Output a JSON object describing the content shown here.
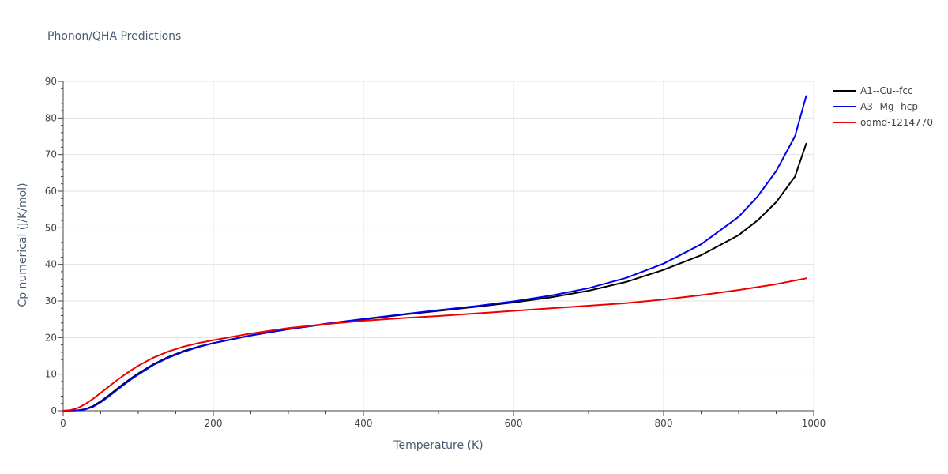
{
  "chart_data": {
    "type": "line",
    "title": "Phonon/QHA Predictions",
    "xlabel": "Temperature (K)",
    "ylabel": "Cp numerical (J/K/mol)",
    "xlim": [
      0,
      1000
    ],
    "ylim": [
      0,
      90
    ],
    "xticks": [
      0,
      200,
      400,
      600,
      800,
      1000
    ],
    "yticks": [
      0,
      10,
      20,
      30,
      40,
      50,
      60,
      70,
      80,
      90
    ],
    "grid": true,
    "legend_position": "top-right",
    "series": [
      {
        "name": "A1--Cu--fcc",
        "color": "#000000",
        "x": [
          0,
          20,
          30,
          40,
          50,
          60,
          70,
          80,
          90,
          100,
          120,
          140,
          160,
          180,
          200,
          250,
          300,
          350,
          400,
          450,
          500,
          550,
          600,
          650,
          700,
          750,
          800,
          850,
          900,
          925,
          950,
          975,
          990
        ],
        "y": [
          0,
          0.1,
          0.5,
          1.3,
          2.6,
          4.1,
          5.7,
          7.3,
          8.8,
          10.2,
          12.7,
          14.7,
          16.3,
          17.5,
          18.5,
          20.6,
          22.3,
          23.7,
          25.0,
          26.2,
          27.3,
          28.4,
          29.6,
          31.0,
          32.8,
          35.2,
          38.5,
          42.5,
          48.0,
          52.0,
          57.0,
          64.0,
          73.0
        ]
      },
      {
        "name": "A3--Mg--hcp",
        "color": "#0000ee",
        "x": [
          0,
          20,
          30,
          40,
          50,
          60,
          70,
          80,
          90,
          100,
          120,
          140,
          160,
          180,
          200,
          250,
          300,
          350,
          400,
          450,
          500,
          550,
          600,
          650,
          700,
          750,
          800,
          850,
          900,
          925,
          950,
          975,
          990
        ],
        "y": [
          0,
          0.1,
          0.4,
          1.1,
          2.3,
          3.8,
          5.4,
          7.0,
          8.5,
          9.9,
          12.5,
          14.5,
          16.1,
          17.4,
          18.5,
          20.6,
          22.3,
          23.8,
          25.1,
          26.3,
          27.5,
          28.6,
          29.9,
          31.5,
          33.5,
          36.3,
          40.2,
          45.5,
          53.0,
          58.5,
          65.5,
          75.0,
          86.0
        ]
      },
      {
        "name": "oqmd-1214770",
        "color": "#ee0000",
        "x": [
          0,
          10,
          20,
          30,
          40,
          50,
          60,
          70,
          80,
          90,
          100,
          120,
          140,
          160,
          180,
          200,
          250,
          300,
          350,
          400,
          450,
          500,
          550,
          600,
          650,
          700,
          750,
          800,
          850,
          900,
          950,
          990
        ],
        "y": [
          0,
          0.2,
          0.8,
          1.9,
          3.3,
          4.9,
          6.5,
          8.1,
          9.6,
          11.0,
          12.3,
          14.5,
          16.2,
          17.5,
          18.5,
          19.3,
          21.1,
          22.6,
          23.7,
          24.6,
          25.3,
          25.9,
          26.6,
          27.3,
          28.0,
          28.7,
          29.4,
          30.4,
          31.6,
          33.0,
          34.6,
          36.2
        ]
      }
    ]
  }
}
